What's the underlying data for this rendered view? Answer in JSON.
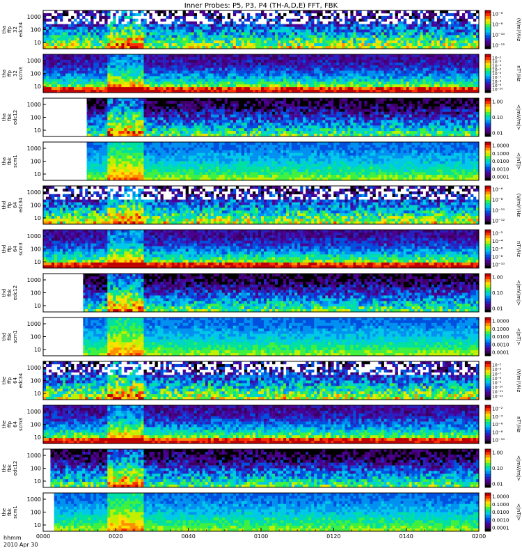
{
  "title": "Inner Probes: P5, P3, P4 (TH-A,D,E) FFT, FBK",
  "footer": {
    "time_label": "hhmm",
    "date_label": "2010 Apr 30"
  },
  "chart_data": {
    "type": "heatmap",
    "x_axis": {
      "range": [
        "0000",
        "0200"
      ],
      "ticks": [
        "0000",
        "0020",
        "0040",
        "0100",
        "0120",
        "0140",
        "0200"
      ],
      "minor_ticks_between": 4
    },
    "panels": [
      {
        "probe": "tha",
        "ylabel": [
          "tha",
          "ffp",
          "32",
          "edc34"
        ],
        "yticks": [
          "1000",
          "100",
          "10"
        ],
        "cbar_ticks": [
          "10⁻⁶",
          "10⁻⁸",
          "10⁻¹⁰",
          "10⁻¹²"
        ],
        "cbar_unit": "(V/m)²/Hz",
        "kind": "E",
        "data_start": "0000"
      },
      {
        "probe": "tha",
        "ylabel": [
          "tha",
          "ffp",
          "32",
          "scm3"
        ],
        "yticks": [
          "1000",
          "100",
          "10"
        ],
        "cbar_ticks": [
          "10⁻²",
          "10⁻³",
          "10⁻⁴",
          "10⁻⁵",
          "10⁻⁶",
          "10⁻⁷",
          "10⁻⁸",
          "10⁻⁹",
          "10⁻¹⁰"
        ],
        "cbar_unit": "nT²/Hz",
        "kind": "B",
        "data_start": "0000"
      },
      {
        "probe": "tha",
        "ylabel": [
          "tha",
          "fbk",
          "edc12"
        ],
        "yticks": [
          "1000",
          "100",
          "10"
        ],
        "cbar_ticks": [
          "1.00",
          "0.10",
          "0.01"
        ],
        "cbar_unit": "<|mV/m|>",
        "kind": "FE",
        "data_start": "0012"
      },
      {
        "probe": "tha",
        "ylabel": [
          "tha",
          "fbk",
          "scm1"
        ],
        "yticks": [
          "1000",
          "100",
          "10"
        ],
        "cbar_ticks": [
          "1.0000",
          "0.1000",
          "0.0100",
          "0.0010",
          "0.0001"
        ],
        "cbar_unit": "<|nT|>",
        "kind": "FB",
        "data_start": "0012"
      },
      {
        "probe": "thd",
        "ylabel": [
          "thd",
          "ffp",
          "64",
          "edc34"
        ],
        "yticks": [
          "1000",
          "100",
          "10"
        ],
        "cbar_ticks": [
          "10⁻⁶",
          "10⁻⁸",
          "10⁻¹⁰",
          "10⁻¹²"
        ],
        "cbar_unit": "(V/m)²/Hz",
        "kind": "E",
        "data_start": "0000"
      },
      {
        "probe": "thd",
        "ylabel": [
          "thd",
          "ffp",
          "64",
          "scm3"
        ],
        "yticks": [
          "1000",
          "100",
          "10"
        ],
        "cbar_ticks": [
          "10⁻²",
          "10⁻⁴",
          "10⁻⁶",
          "10⁻⁸",
          "10⁻¹⁰"
        ],
        "cbar_unit": "nT²/Hz",
        "kind": "B",
        "data_start": "0000"
      },
      {
        "probe": "thd",
        "ylabel": [
          "thd",
          "fbk",
          "edc12"
        ],
        "yticks": [
          "1000",
          "100",
          "10"
        ],
        "cbar_ticks": [
          "1.00",
          "0.10",
          "0.01"
        ],
        "cbar_unit": "<|mV/m|>",
        "kind": "FE",
        "data_start": "0011"
      },
      {
        "probe": "thd",
        "ylabel": [
          "thd",
          "fbk",
          "scm1"
        ],
        "yticks": [
          "1000",
          "100",
          "10"
        ],
        "cbar_ticks": [
          "1.0000",
          "0.1000",
          "0.0100",
          "0.0010",
          "0.0001"
        ],
        "cbar_unit": "<|nT|>",
        "kind": "FB",
        "data_start": "0011"
      },
      {
        "probe": "the",
        "ylabel": [
          "the",
          "ffp",
          "64",
          "edc34"
        ],
        "yticks": [
          "1000",
          "100",
          "10"
        ],
        "cbar_ticks": [
          "10⁻⁵",
          "10⁻⁶",
          "10⁻⁷",
          "10⁻⁸",
          "10⁻⁹",
          "10⁻¹⁰",
          "10⁻¹¹",
          "10⁻¹²"
        ],
        "cbar_unit": "(V/m)²/Hz",
        "kind": "E",
        "data_start": "0000"
      },
      {
        "probe": "the",
        "ylabel": [
          "the",
          "ffp",
          "64",
          "scm3"
        ],
        "yticks": [
          "1000",
          "100",
          "10"
        ],
        "cbar_ticks": [
          "10⁻²",
          "10⁻⁴",
          "10⁻⁶",
          "10⁻⁸",
          "10⁻¹⁰"
        ],
        "cbar_unit": "nT²/Hz",
        "kind": "B",
        "data_start": "0000"
      },
      {
        "probe": "the",
        "ylabel": [
          "the",
          "fbk",
          "edc12"
        ],
        "yticks": [
          "1000",
          "100",
          "10"
        ],
        "cbar_ticks": [
          "1.00",
          "0.10",
          "0.01"
        ],
        "cbar_unit": "<|mV/m|>",
        "kind": "FE",
        "data_start": "0002"
      },
      {
        "probe": "the",
        "ylabel": [
          "the",
          "fbk",
          "scm1"
        ],
        "yticks": [
          "1000",
          "100",
          "10"
        ],
        "cbar_ticks": [
          "1.0000",
          "0.1000",
          "0.0100",
          "0.0010",
          "0.0001"
        ],
        "cbar_unit": "<|nT|>",
        "kind": "FB",
        "data_start": "0003"
      }
    ],
    "colormap": [
      "#000000",
      "#3a0060",
      "#4a0090",
      "#2a20c0",
      "#0050e0",
      "#0090f0",
      "#00c8e8",
      "#00e0a0",
      "#40f040",
      "#c0f000",
      "#ffe000",
      "#ff9000",
      "#ff3000",
      "#c00000"
    ]
  }
}
